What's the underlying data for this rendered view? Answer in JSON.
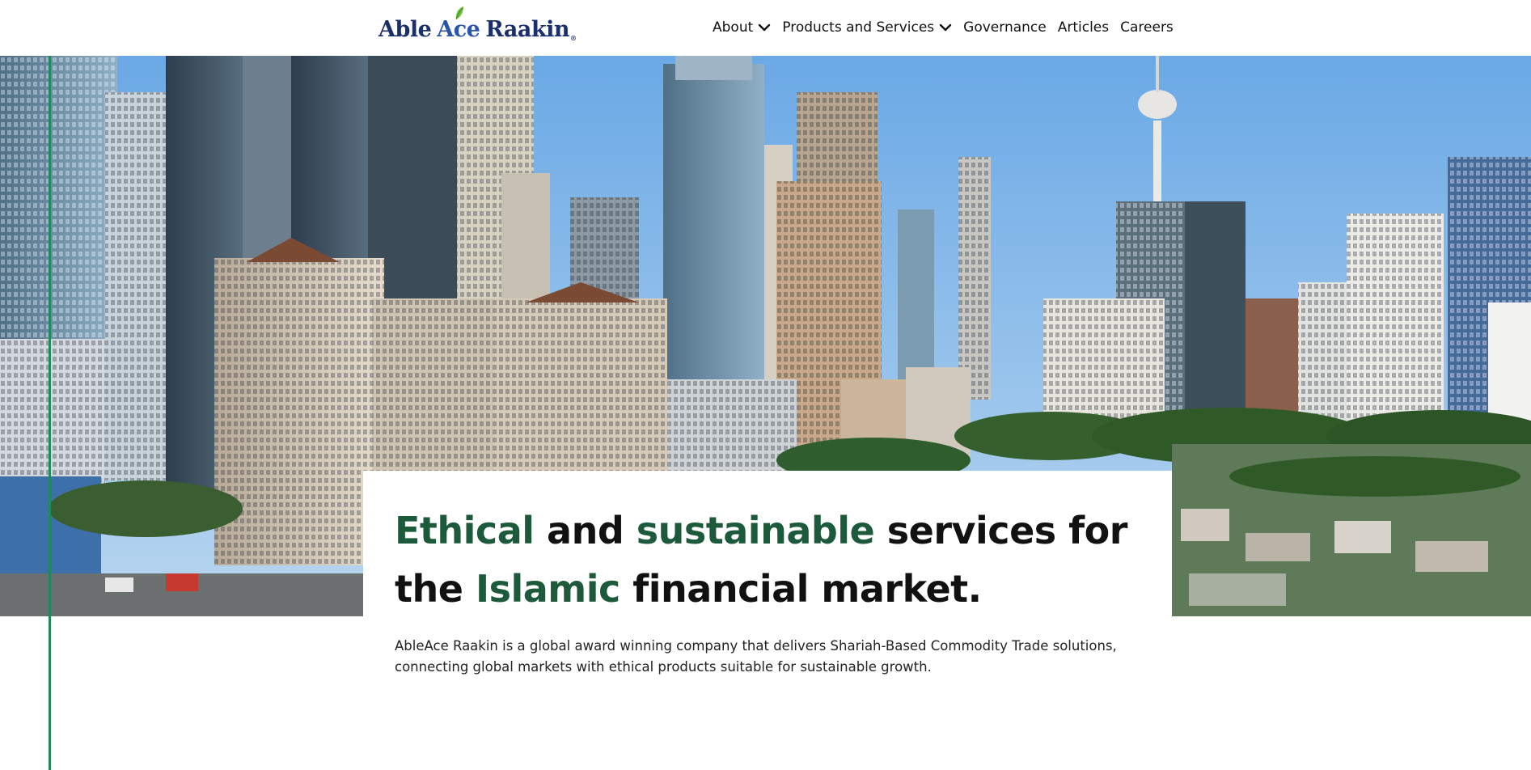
{
  "header": {
    "logo": {
      "able": "Able",
      "ace": "Ace",
      "raakin": "Raakin",
      "reg": "®"
    },
    "nav": [
      {
        "label": "About",
        "has_dropdown": true
      },
      {
        "label": "Products and Services",
        "has_dropdown": true
      },
      {
        "label": "Governance",
        "has_dropdown": false
      },
      {
        "label": "Articles",
        "has_dropdown": false
      },
      {
        "label": "Careers",
        "has_dropdown": false
      }
    ]
  },
  "hero": {
    "headline": {
      "w1": "Ethical",
      "w2": " and ",
      "w3": "sustainable",
      "w4": " services for the ",
      "w5": "Islamic",
      "w6": " financial market."
    },
    "description": "AbleAce Raakin is a global award winning company that delivers Shariah-Based Commodity Trade solutions, connecting global markets with ethical products suitable for sustainable growth."
  },
  "colors": {
    "brand_navy": "#1b2f6b",
    "brand_green": "#1d5a3c",
    "accent_line": "#1f8a5b",
    "sky": "#7fb4e6"
  },
  "icons": [
    "leaf-icon",
    "chevron-down-icon"
  ]
}
